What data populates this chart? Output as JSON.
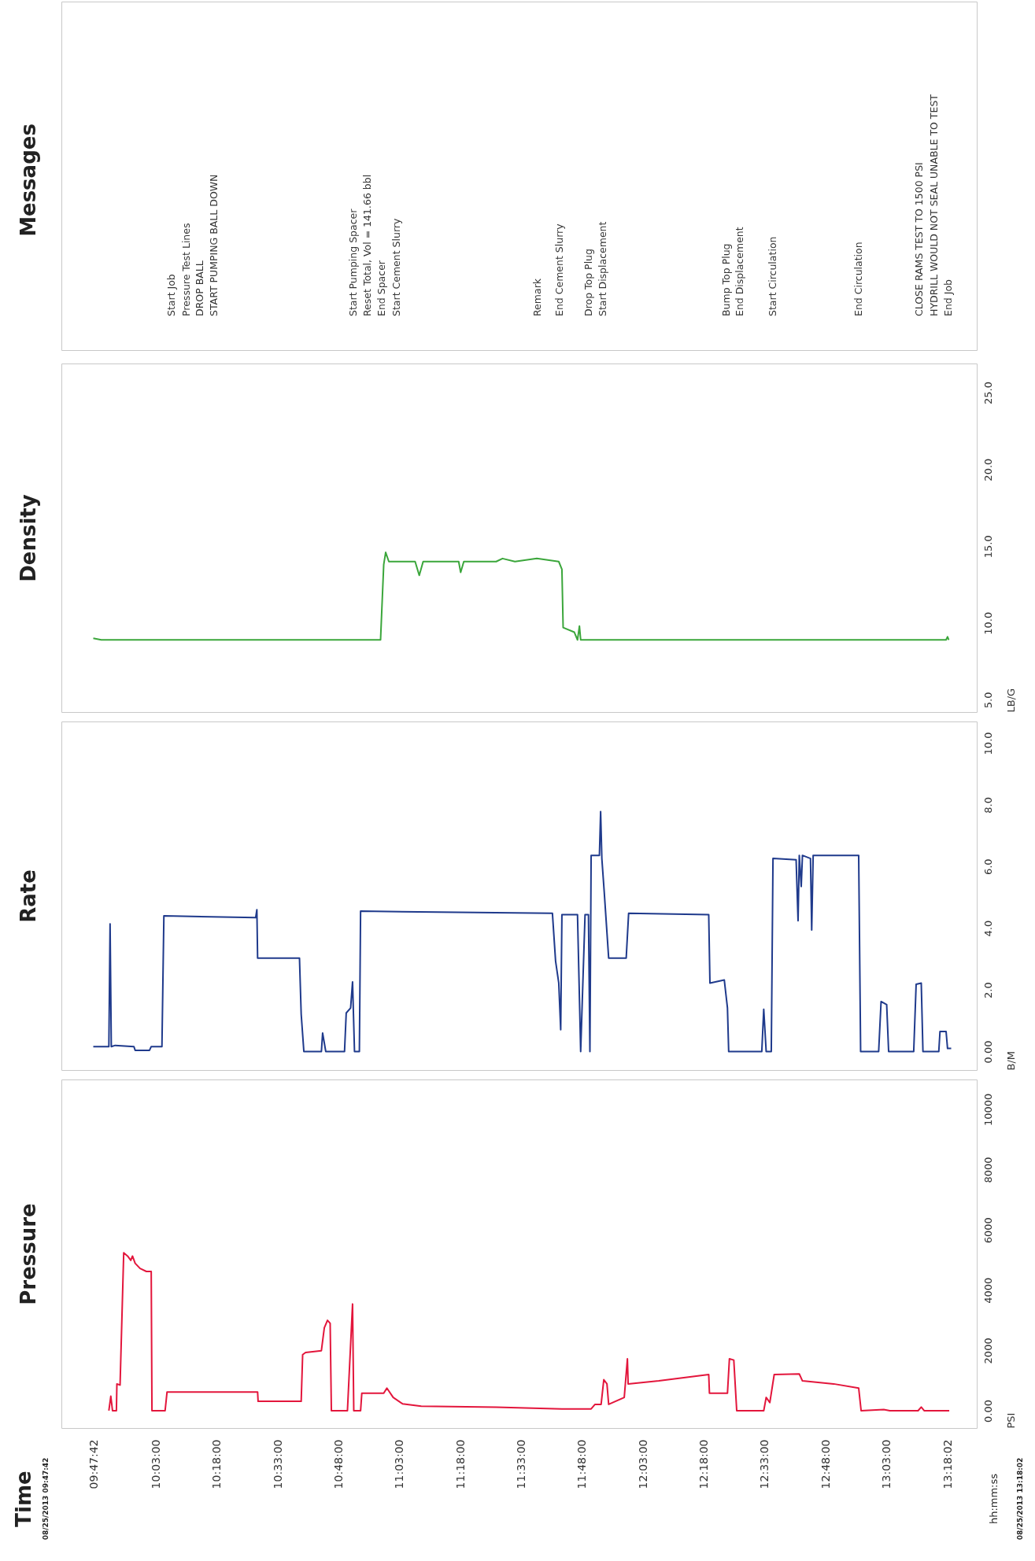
{
  "chart_data": [
    {
      "type": "line",
      "title": "Pressure",
      "ylabel": "PSI",
      "tick_labels": "xy",
      "annotations": [
        "Time",
        "08/25/2013 09:47:42",
        "hh:mm:ss",
        "08/25/2013 13:18:02"
      ],
      "xlim": [
        9.66,
        13.42
      ],
      "xticks": [
        {
          "value": 9.795,
          "label": "09:47:42"
        },
        {
          "value": 10.05,
          "label": "10:03:00"
        },
        {
          "value": 10.3,
          "label": "10:18:00"
        },
        {
          "value": 10.55,
          "label": "10:33:00"
        },
        {
          "value": 10.8,
          "label": "10:48:00"
        },
        {
          "value": 11.05,
          "label": "11:03:00"
        },
        {
          "value": 11.3,
          "label": "11:18:00"
        },
        {
          "value": 11.55,
          "label": "11:33:00"
        },
        {
          "value": 11.8,
          "label": "11:48:00"
        },
        {
          "value": 12.05,
          "label": "12:03:00"
        },
        {
          "value": 12.3,
          "label": "12:18:00"
        },
        {
          "value": 12.55,
          "label": "12:33:00"
        },
        {
          "value": 12.8,
          "label": "12:48:00"
        },
        {
          "value": 13.05,
          "label": "13:03:00"
        },
        {
          "value": 13.3006,
          "label": "13:18:02"
        }
      ],
      "ylim": [
        -575,
        10990
      ],
      "yticks": [
        {
          "value": 0,
          "label": "0.00"
        },
        2000,
        4000,
        6000,
        8000,
        10000
      ],
      "series": [
        {
          "color": "#e3163c",
          "x": [
            9.855,
            9.863,
            9.87,
            9.886,
            9.888,
            9.901,
            9.916,
            9.932,
            9.945,
            9.952,
            9.963,
            9.983,
            10.009,
            10.029,
            10.032,
            10.086,
            10.094,
            10.466,
            10.468,
            10.645,
            10.651,
            10.663,
            10.728,
            10.74,
            10.753,
            10.764,
            10.769,
            10.835,
            10.856,
            10.861,
            10.889,
            10.894,
            10.984,
            10.997,
            11.023,
            11.061,
            11.138,
            11.446,
            11.716,
            11.836,
            11.852,
            11.877,
            11.888,
            11.901,
            11.908,
            11.972,
            11.985,
            11.988,
            12.114,
            12.319,
            12.322,
            12.396,
            12.404,
            12.422,
            12.434,
            12.545,
            12.555,
            12.57,
            12.588,
            12.691,
            12.704,
            12.832,
            12.935,
            12.945,
            13.038,
            13.063,
            13.179,
            13.192,
            13.204,
            13.307
          ],
          "values": [
            0,
            480,
            0,
            0,
            890,
            850,
            5240,
            5130,
            4990,
            5130,
            4890,
            4720,
            4620,
            4620,
            0,
            0,
            620,
            620,
            310,
            310,
            1860,
            1930,
            1990,
            2750,
            3000,
            2900,
            0,
            0,
            3540,
            0,
            0,
            580,
            580,
            750,
            440,
            230,
            150,
            120,
            60,
            60,
            210,
            210,
            1030,
            890,
            210,
            440,
            1720,
            890,
            990,
            1200,
            580,
            580,
            1720,
            1680,
            0,
            0,
            440,
            270,
            1200,
            1220,
            990,
            890,
            750,
            0,
            40,
            0,
            0,
            120,
            0,
            0
          ]
        }
      ]
    },
    {
      "type": "line",
      "title": "Rate",
      "ylabel": "B/M",
      "tick_labels": "y",
      "xlim": [
        9.66,
        13.42
      ],
      "ylim": [
        -0.6,
        10.7
      ],
      "yticks": [
        {
          "value": 0,
          "label": "0.00"
        },
        {
          "value": 2,
          "label": "2.0"
        },
        {
          "value": 4,
          "label": "4.0"
        },
        {
          "value": 6,
          "label": "6.0"
        },
        {
          "value": 8,
          "label": "8.0"
        },
        {
          "value": 10,
          "label": "10.0"
        }
      ],
      "series": [
        {
          "color": "#1f3a8c",
          "x": [
            9.791,
            9.855,
            9.86,
            9.865,
            9.881,
            9.958,
            9.963,
            10.022,
            10.029,
            10.073,
            10.081,
            10.458,
            10.463,
            10.466,
            10.638,
            10.645,
            10.656,
            10.728,
            10.733,
            10.746,
            10.823,
            10.83,
            10.848,
            10.856,
            10.864,
            10.884,
            10.889,
            11.677,
            11.69,
            11.703,
            11.711,
            11.716,
            11.78,
            11.793,
            11.811,
            11.825,
            11.831,
            11.836,
            11.87,
            11.875,
            11.88,
            11.89,
            11.908,
            11.98,
            11.99,
            12.319,
            12.324,
            12.383,
            12.396,
            12.401,
            12.537,
            12.545,
            12.555,
            12.576,
            12.583,
            12.678,
            12.686,
            12.691,
            12.699,
            12.704,
            12.737,
            12.742,
            12.748,
            12.935,
            12.943,
            13.017,
            13.027,
            13.05,
            13.058,
            13.161,
            13.171,
            13.192,
            13.199,
            13.264,
            13.269,
            13.294,
            13.3,
            13.315
          ],
          "values": [
            0.16,
            0.16,
            4.14,
            0.16,
            0.2,
            0.16,
            0.04,
            0.04,
            0.16,
            0.16,
            4.4,
            4.34,
            4.6,
            3.03,
            3.03,
            1.21,
            0,
            0,
            0.6,
            0,
            0,
            1.25,
            1.41,
            2.26,
            0,
            0,
            4.55,
            4.48,
            2.93,
            2.22,
            0.71,
            4.44,
            4.44,
            0,
            4.44,
            4.44,
            0,
            6.36,
            6.36,
            7.78,
            6.26,
            5.15,
            3.03,
            3.03,
            4.48,
            4.44,
            2.22,
            2.32,
            1.41,
            0,
            0,
            1.37,
            0,
            0,
            6.26,
            6.22,
            4.24,
            6.36,
            5.35,
            6.36,
            6.26,
            3.94,
            6.36,
            6.36,
            0,
            0,
            1.62,
            1.52,
            0,
            0,
            2.18,
            2.22,
            0,
            0,
            0.65,
            0.65,
            0.1,
            0.1
          ]
        }
      ]
    },
    {
      "type": "line",
      "title": "Density",
      "ylabel": "LB/G",
      "tick_labels": "y",
      "xlim": [
        9.66,
        13.42
      ],
      "ylim": [
        4.2,
        26.9
      ],
      "yticks": [
        {
          "value": 5,
          "label": "5.0"
        },
        {
          "value": 10,
          "label": "10.0"
        },
        {
          "value": 15,
          "label": "15.0"
        },
        {
          "value": 20,
          "label": "20.0"
        },
        {
          "value": 25,
          "label": "25.0"
        }
      ],
      "series": [
        {
          "color": "#3ba63b",
          "x": [
            9.791,
            9.824,
            10.959,
            10.971,
            10.984,
            10.992,
            11.005,
            11.113,
            11.13,
            11.146,
            11.292,
            11.3,
            11.313,
            11.446,
            11.472,
            11.523,
            11.613,
            11.703,
            11.716,
            11.721,
            11.767,
            11.78,
            11.788,
            11.793,
            11.908,
            13.294,
            13.3,
            13.305
          ],
          "values": [
            9.0,
            8.9,
            8.9,
            8.9,
            13.8,
            14.6,
            14.0,
            14.0,
            13.1,
            14.0,
            14.0,
            13.3,
            14.0,
            14.0,
            14.2,
            14.0,
            14.2,
            14.0,
            13.5,
            9.7,
            9.4,
            8.9,
            9.8,
            8.9,
            8.9,
            8.9,
            9.1,
            8.9
          ]
        }
      ]
    },
    {
      "type": "other",
      "title": "Messages",
      "annotations": [
        "Start Job",
        "Pressure Test Lines",
        "DROP BALL",
        "START PUMPING BALL DOWN",
        "Start Pumping Spacer",
        "Reset Total, Vol = 141.66  bbl",
        "End Spacer",
        "Start Cement Slurry",
        "Remark",
        "End Cement Slurry",
        "Drop Top Plug",
        "Start Displacement",
        "Bump Top Plug",
        "End Displacement",
        "Start Circulation",
        "End Circulation",
        "CLOSE RAMS TEST TO 1500 PSI",
        "HYDRILL WOULD NOT SEAL UNABLE TO TEST",
        "End Job"
      ]
    }
  ]
}
